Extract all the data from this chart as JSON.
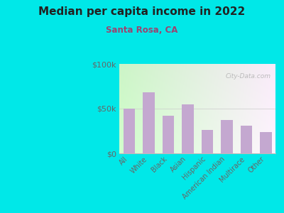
{
  "title": "Median per capita income in 2022",
  "subtitle": "Santa Rosa, CA",
  "categories": [
    "All",
    "White",
    "Black",
    "Asian",
    "Hispanic",
    "American Indian",
    "Multirace",
    "Other"
  ],
  "values": [
    50000,
    68000,
    42000,
    55000,
    26000,
    37000,
    31000,
    24000
  ],
  "bar_color": "#c4a8d0",
  "background_outer": "#00e8e8",
  "title_color": "#222222",
  "subtitle_color": "#9b4470",
  "tick_color": "#666666",
  "ytick_labels": [
    "$0",
    "$50k",
    "$100k"
  ],
  "ytick_values": [
    0,
    50000,
    100000
  ],
  "ylim": [
    0,
    100000
  ],
  "watermark": "City-Data.com",
  "grad_top_left": "#c8e8b8",
  "grad_bottom_right": "#f8fff0"
}
